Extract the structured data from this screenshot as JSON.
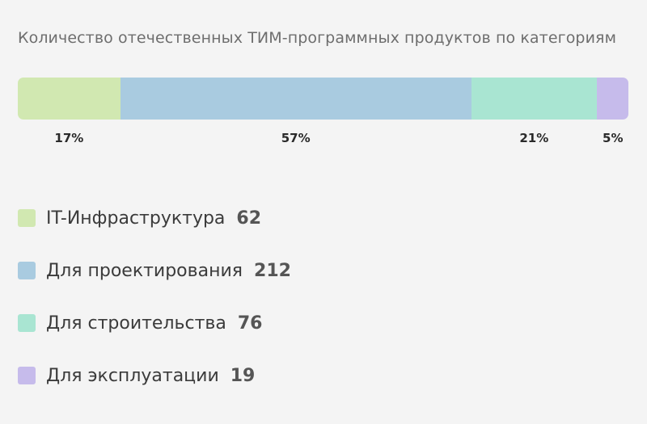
{
  "chart_data": {
    "type": "bar",
    "title": "Количество отечественных ТИМ-программных продуктов по категориям",
    "categories": [
      "IT-Инфраструктура",
      "Для проектирования",
      "Для строительства",
      "Для эксплуатации"
    ],
    "values": [
      62,
      212,
      76,
      19
    ],
    "percent_labels": [
      "17%",
      "57%",
      "21%",
      "5%"
    ],
    "colors": [
      "#d1e8b1",
      "#a9cbe0",
      "#a9e5d2",
      "#c6bbeb"
    ],
    "legend": "bottom-left"
  }
}
